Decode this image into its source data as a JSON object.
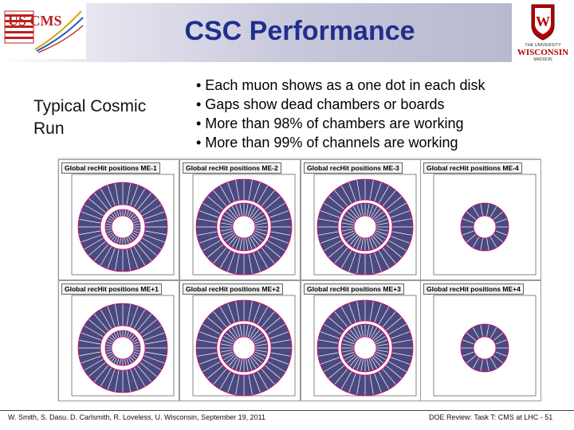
{
  "header": {
    "logo_text": "US CMS",
    "title": "CSC Performance",
    "uw_logo": {
      "line1": "THE UNIVERSITY",
      "line2": "WISCONSIN",
      "line3": "MADISON"
    }
  },
  "left_label": "Typical Cosmic Run",
  "bullets": [
    "• Each muon shows as a one dot in each disk",
    "• Gaps show dead chambers or boards",
    "• More than 98% of chambers are working",
    "• More than 99% of channels are working"
  ],
  "panels": [
    {
      "title": "Global recHit positions ME-1"
    },
    {
      "title": "Global recHit positions ME-2"
    },
    {
      "title": "Global recHit positions ME-3"
    },
    {
      "title": "Global recHit positions ME-4"
    },
    {
      "title": "Global recHit positions ME+1"
    },
    {
      "title": "Global recHit positions ME+2"
    },
    {
      "title": "Global recHit positions ME+3"
    },
    {
      "title": "Global recHit positions ME+4"
    }
  ],
  "footer": {
    "left": "W. Smith, S. Dasu. D. Carlsmith, R. Loveless, U. Wisconsin, September 19, 2011",
    "right": "DOE Review: Task T: CMS at LHC - 51"
  },
  "colors": {
    "title": "#1f2f8c",
    "ring": "#e0006a",
    "dots": "#2a2a6a"
  }
}
